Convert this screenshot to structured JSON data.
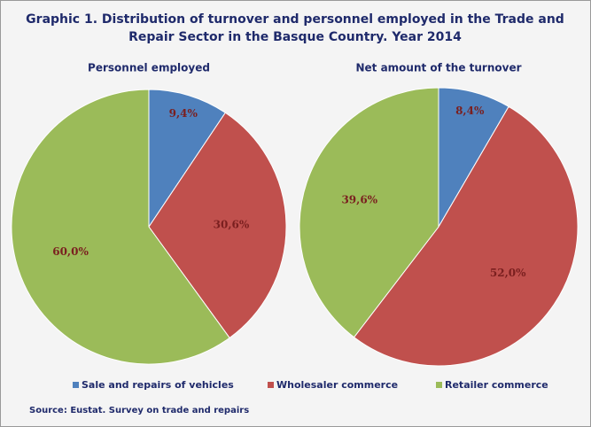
{
  "title_line1": "Graphic 1. Distribution of turnover and personnel employed in the Trade and",
  "title_line2": "Repair Sector in the Basque Country. Year 2014",
  "source": "Source: Eustat. Survey on trade and repairs",
  "chart_data": [
    {
      "type": "pie",
      "title": "Personnel employed",
      "categories": [
        "Sale and repairs of vehicles",
        "Wholesaler commerce",
        "Retailer commerce"
      ],
      "values": [
        9.4,
        30.6,
        60.0
      ],
      "value_labels": [
        "9,4%",
        "30,6%",
        "60,0%"
      ],
      "colors": [
        "#4f81bd",
        "#c0504d",
        "#9bbb59"
      ]
    },
    {
      "type": "pie",
      "title": "Net amount of the turnover",
      "categories": [
        "Sale and repairs of vehicles",
        "Wholesaler commerce",
        "Retailer commerce"
      ],
      "values": [
        8.4,
        52.0,
        39.6
      ],
      "value_labels": [
        "8,4%",
        "52,0%",
        "39,6%"
      ],
      "colors": [
        "#4f81bd",
        "#c0504d",
        "#9bbb59"
      ]
    }
  ]
}
